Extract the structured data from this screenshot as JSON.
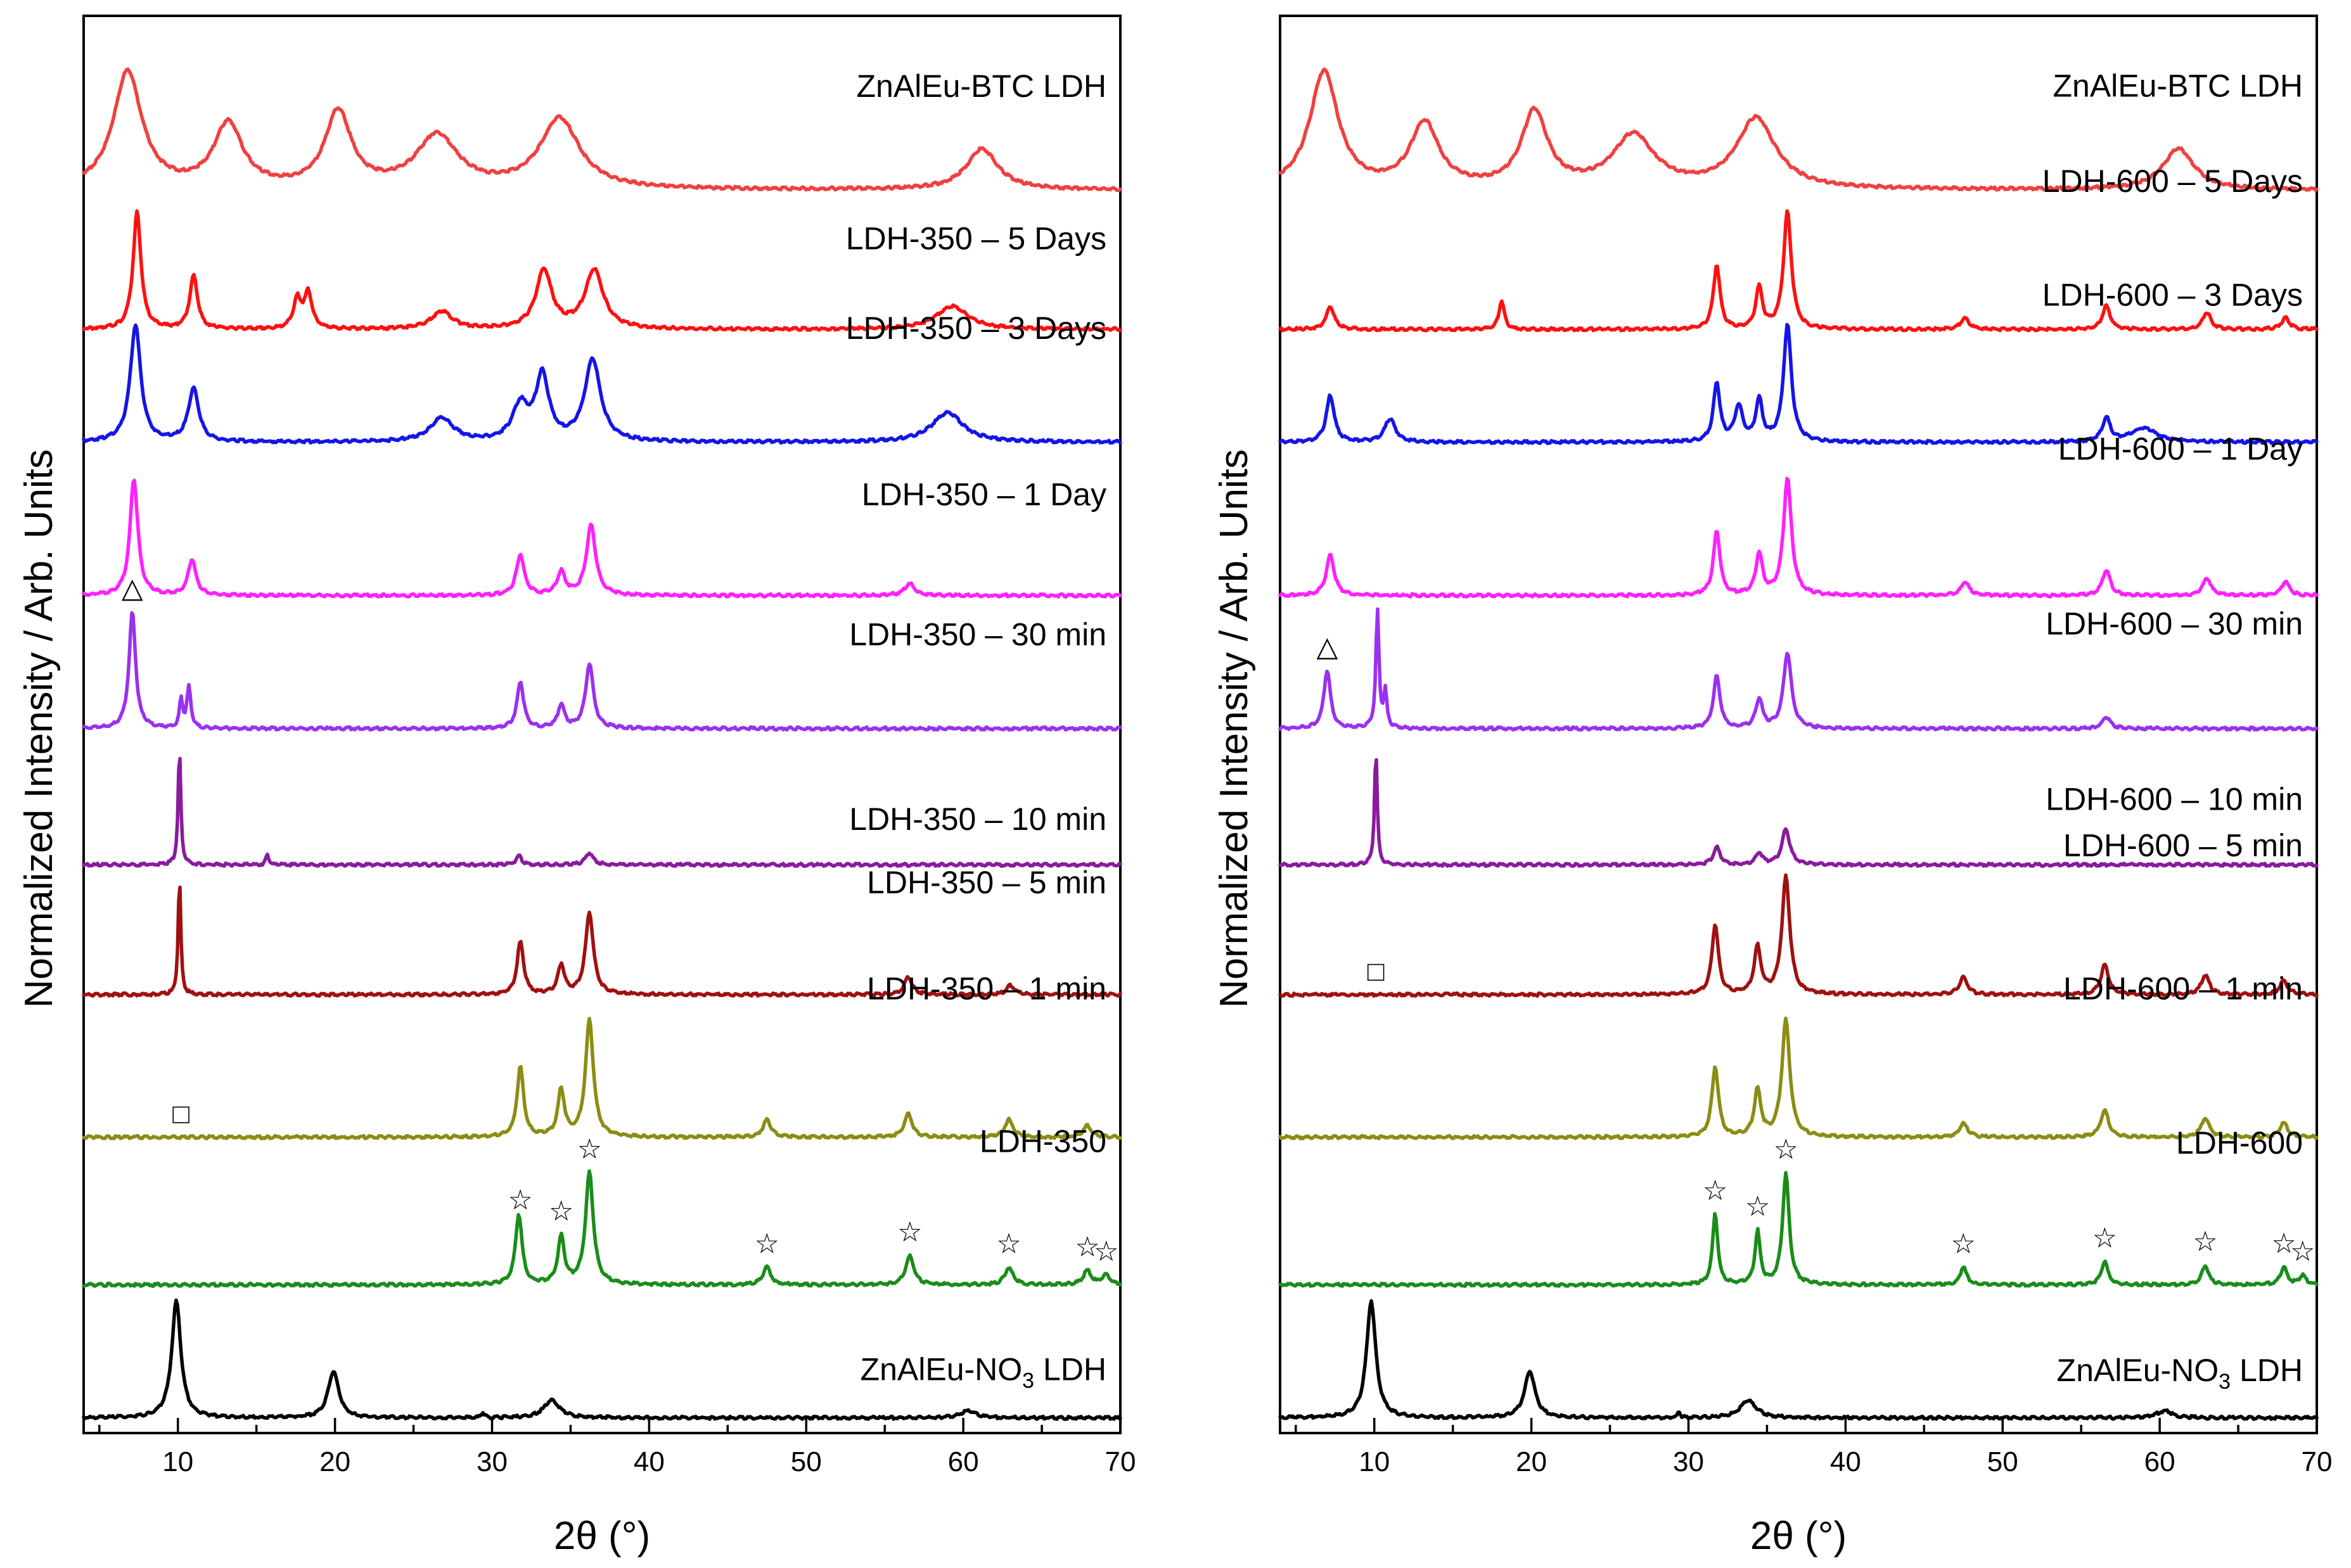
{
  "figure": {
    "y_axis_title": "Normalized Intensity / Arb. Units",
    "x_axis_title": "2θ (°)"
  },
  "chart_data": [
    {
      "type": "line",
      "panel": "left",
      "xlabel": "2θ (°)",
      "ylabel": "Normalized Intensity / Arb. Units",
      "xlim": [
        4,
        70
      ],
      "xticks": [
        10,
        20,
        30,
        40,
        50,
        60,
        70
      ],
      "series": [
        {
          "name": "ZnAlEu-BTC LDH",
          "label_main": "ZnAlEu-BTC LDH",
          "color": "#f04040",
          "peaks": [
            [
              6.8,
              1.0,
              1.1
            ],
            [
              13.2,
              0.55,
              1.1
            ],
            [
              20.2,
              0.65,
              1.0
            ],
            [
              26.5,
              0.45,
              1.6
            ],
            [
              34.3,
              0.6,
              1.5
            ],
            [
              61.2,
              0.35,
              1.2
            ]
          ]
        },
        {
          "name": "LDH-350 – 5 Days",
          "label_main": "LDH-350 – 5 Days",
          "color": "#ff1010",
          "peaks": [
            [
              7.4,
              1.0,
              0.3
            ],
            [
              11.0,
              0.45,
              0.3
            ],
            [
              17.6,
              0.25,
              0.3
            ],
            [
              18.3,
              0.3,
              0.3
            ],
            [
              26.8,
              0.15,
              0.8
            ],
            [
              33.3,
              0.5,
              0.6
            ],
            [
              36.5,
              0.5,
              0.7
            ],
            [
              59.3,
              0.2,
              1.2
            ]
          ]
        },
        {
          "name": "LDH-350 – 3 Days",
          "label_main": "LDH-350 – 3 Days",
          "color": "#1515e6",
          "peaks": [
            [
              7.3,
              1.0,
              0.4
            ],
            [
              11.0,
              0.45,
              0.4
            ],
            [
              26.8,
              0.2,
              0.9
            ],
            [
              31.8,
              0.3,
              0.6
            ],
            [
              33.2,
              0.55,
              0.5
            ],
            [
              36.4,
              0.7,
              0.6
            ],
            [
              59.0,
              0.25,
              1.2
            ]
          ]
        },
        {
          "name": "LDH-350 – 1 Day",
          "label_main": "LDH-350 – 1 Day",
          "color": "#ff20ff",
          "peaks": [
            [
              7.2,
              1.0,
              0.3
            ],
            [
              10.9,
              0.3,
              0.3
            ],
            [
              31.8,
              0.35,
              0.3
            ],
            [
              34.4,
              0.2,
              0.3
            ],
            [
              36.3,
              0.6,
              0.35
            ],
            [
              56.6,
              0.1,
              0.4
            ]
          ]
        },
        {
          "name": "LDH-350 – 30 min",
          "label_main": "LDH-350 – 30 min",
          "color": "#9a30f0",
          "peaks": [
            [
              7.1,
              1.0,
              0.25
            ],
            [
              10.2,
              0.25,
              0.12
            ],
            [
              10.7,
              0.35,
              0.15
            ],
            [
              31.8,
              0.4,
              0.25
            ],
            [
              34.4,
              0.2,
              0.25
            ],
            [
              36.2,
              0.55,
              0.3
            ]
          ]
        },
        {
          "name": "LDH-350 – 10 min",
          "label_main": "LDH-350 – 10 min",
          "color": "#8a1a9e",
          "peaks": [
            [
              10.1,
              1.0,
              0.1
            ],
            [
              15.7,
              0.1,
              0.1
            ],
            [
              31.7,
              0.08,
              0.2
            ],
            [
              36.2,
              0.1,
              0.3
            ]
          ]
        },
        {
          "name": "LDH-350 – 5 min",
          "label_main": "LDH-350 – 5 min",
          "color": "#a01010",
          "peaks": [
            [
              10.1,
              1.0,
              0.1
            ],
            [
              31.8,
              0.45,
              0.25
            ],
            [
              34.4,
              0.25,
              0.25
            ],
            [
              36.2,
              0.7,
              0.3
            ],
            [
              56.5,
              0.15,
              0.3
            ],
            [
              63.0,
              0.08,
              0.3
            ]
          ]
        },
        {
          "name": "LDH-350 – 1 min",
          "label_main": "LDH-350 – 1 min",
          "color": "#8c8c14",
          "peaks": [
            [
              31.8,
              0.6,
              0.25
            ],
            [
              34.4,
              0.4,
              0.25
            ],
            [
              36.2,
              1.0,
              0.3
            ],
            [
              47.5,
              0.15,
              0.3
            ],
            [
              56.5,
              0.2,
              0.3
            ],
            [
              62.9,
              0.15,
              0.3
            ],
            [
              67.9,
              0.1,
              0.3
            ]
          ]
        },
        {
          "name": "LDH-350",
          "label_main": "LDH-350",
          "color": "#1a8c1a",
          "peaks": [
            [
              31.7,
              0.6,
              0.25
            ],
            [
              34.4,
              0.4,
              0.25
            ],
            [
              36.2,
              0.95,
              0.3
            ],
            [
              47.5,
              0.15,
              0.3
            ],
            [
              56.6,
              0.25,
              0.3
            ],
            [
              62.9,
              0.15,
              0.3
            ],
            [
              67.9,
              0.12,
              0.3
            ],
            [
              69.1,
              0.08,
              0.3
            ]
          ]
        },
        {
          "name": "ZnAlEu-NO3 LDH",
          "label_main": "ZnAlEu-NO",
          "label_sub": "3",
          "label_tail": " LDH",
          "color": "#000000",
          "peaks": [
            [
              9.9,
              1.0,
              0.35
            ],
            [
              19.9,
              0.4,
              0.4
            ],
            [
              29.4,
              0.05,
              0.1
            ],
            [
              33.8,
              0.15,
              0.6
            ],
            [
              60.3,
              0.06,
              0.6
            ]
          ]
        }
      ],
      "markers": [
        {
          "symbol": "☆",
          "x": 31.8,
          "series": "LDH-350"
        },
        {
          "symbol": "☆",
          "x": 34.4,
          "series": "LDH-350"
        },
        {
          "symbol": "☆",
          "x": 36.2,
          "series": "LDH-350"
        },
        {
          "symbol": "☆",
          "x": 47.5,
          "series": "LDH-350"
        },
        {
          "symbol": "☆",
          "x": 56.6,
          "series": "LDH-350"
        },
        {
          "symbol": "☆",
          "x": 62.9,
          "series": "LDH-350"
        },
        {
          "symbol": "☆",
          "x": 67.9,
          "series": "LDH-350"
        },
        {
          "symbol": "☆",
          "x": 69.1,
          "series": "LDH-350"
        },
        {
          "symbol": "△",
          "x": 7.1,
          "series": "LDH-350 – 30 min"
        },
        {
          "symbol": "□",
          "x": 10.2,
          "series": "LDH-350 – 1 min"
        }
      ]
    },
    {
      "type": "line",
      "panel": "right",
      "xlabel": "2θ (°)",
      "ylabel": "Normalized Intensity / Arb. Units",
      "xlim": [
        4,
        70
      ],
      "xticks": [
        10,
        20,
        30,
        40,
        50,
        60,
        70
      ],
      "series": [
        {
          "name": "ZnAlEu-BTC LDH",
          "label_main": "ZnAlEu-BTC LDH",
          "color": "#f04040",
          "peaks": [
            [
              6.8,
              1.0,
              1.1
            ],
            [
              13.2,
              0.55,
              1.1
            ],
            [
              20.2,
              0.65,
              1.0
            ],
            [
              26.5,
              0.45,
              1.6
            ],
            [
              34.3,
              0.6,
              1.5
            ],
            [
              61.2,
              0.35,
              1.2
            ]
          ]
        },
        {
          "name": "LDH-600 – 5 Days",
          "label_main": "LDH-600 – 5 Days",
          "color": "#ff1010",
          "peaks": [
            [
              7.2,
              0.2,
              0.3
            ],
            [
              18.1,
              0.25,
              0.2
            ],
            [
              31.8,
              0.55,
              0.25
            ],
            [
              34.5,
              0.35,
              0.25
            ],
            [
              36.3,
              1.0,
              0.3
            ],
            [
              47.6,
              0.1,
              0.3
            ],
            [
              56.6,
              0.2,
              0.3
            ],
            [
              63.0,
              0.15,
              0.3
            ],
            [
              68.0,
              0.1,
              0.3
            ]
          ]
        },
        {
          "name": "LDH-600 – 3 Days",
          "label_main": "LDH-600 – 3 Days",
          "color": "#1515e6",
          "peaks": [
            [
              7.2,
              0.4,
              0.3
            ],
            [
              11.0,
              0.2,
              0.4
            ],
            [
              31.8,
              0.5,
              0.25
            ],
            [
              33.2,
              0.3,
              0.3
            ],
            [
              34.5,
              0.35,
              0.25
            ],
            [
              36.3,
              1.0,
              0.3
            ],
            [
              56.6,
              0.2,
              0.3
            ],
            [
              59.0,
              0.12,
              1.0
            ]
          ]
        },
        {
          "name": "LDH-600 – 1 Day",
          "label_main": "LDH-600 – 1 Day",
          "color": "#ff20ff",
          "peaks": [
            [
              7.2,
              0.35,
              0.3
            ],
            [
              31.8,
              0.55,
              0.25
            ],
            [
              34.5,
              0.35,
              0.25
            ],
            [
              36.3,
              1.0,
              0.3
            ],
            [
              47.6,
              0.12,
              0.3
            ],
            [
              56.6,
              0.22,
              0.3
            ],
            [
              63.0,
              0.15,
              0.3
            ],
            [
              68.0,
              0.12,
              0.3
            ]
          ]
        },
        {
          "name": "LDH-600 – 30 min",
          "label_main": "LDH-600 – 30 min",
          "color": "#9a30f0",
          "peaks": [
            [
              7.0,
              0.5,
              0.25
            ],
            [
              10.2,
              1.0,
              0.12
            ],
            [
              10.7,
              0.3,
              0.12
            ],
            [
              31.8,
              0.45,
              0.25
            ],
            [
              34.5,
              0.25,
              0.25
            ],
            [
              36.3,
              0.65,
              0.3
            ],
            [
              56.6,
              0.1,
              0.3
            ]
          ]
        },
        {
          "name": "LDH-600 – 10 min",
          "label_main": "LDH-600 – 10 min",
          "color": "#8a1a9e",
          "peaks": [
            [
              10.1,
              1.0,
              0.1
            ],
            [
              31.8,
              0.15,
              0.25
            ],
            [
              34.5,
              0.1,
              0.25
            ],
            [
              36.2,
              0.3,
              0.3
            ]
          ]
        },
        {
          "name": "LDH-600 – 5 min",
          "label_main": "LDH-600 – 5 min",
          "color": "#a01010",
          "peaks": [
            [
              31.7,
              0.6,
              0.25
            ],
            [
              34.4,
              0.4,
              0.25
            ],
            [
              36.2,
              1.0,
              0.3
            ],
            [
              47.5,
              0.15,
              0.3
            ],
            [
              56.5,
              0.25,
              0.3
            ],
            [
              62.9,
              0.17,
              0.3
            ],
            [
              67.9,
              0.12,
              0.3
            ]
          ]
        },
        {
          "name": "LDH-600 – 1 min",
          "label_main": "LDH-600 – 1 min",
          "color": "#8c8c14",
          "peaks": [
            [
              31.7,
              0.6,
              0.25
            ],
            [
              34.4,
              0.4,
              0.25
            ],
            [
              36.2,
              1.0,
              0.3
            ],
            [
              47.5,
              0.12,
              0.3
            ],
            [
              56.5,
              0.23,
              0.3
            ],
            [
              62.9,
              0.17,
              0.3
            ],
            [
              67.9,
              0.12,
              0.3
            ]
          ]
        },
        {
          "name": "LDH-600",
          "label_main": "LDH-600",
          "color": "#1a8c1a",
          "peaks": [
            [
              31.7,
              0.6,
              0.2
            ],
            [
              34.4,
              0.45,
              0.2
            ],
            [
              36.2,
              0.95,
              0.25
            ],
            [
              47.5,
              0.15,
              0.25
            ],
            [
              56.5,
              0.2,
              0.25
            ],
            [
              62.9,
              0.17,
              0.25
            ],
            [
              67.9,
              0.15,
              0.25
            ],
            [
              69.1,
              0.08,
              0.25
            ]
          ]
        },
        {
          "name": "ZnAlEu-NO3 LDH",
          "label_main": "ZnAlEu-NO",
          "label_sub": "3",
          "label_tail": " LDH",
          "color": "#000000",
          "peaks": [
            [
              9.8,
              1.0,
              0.35
            ],
            [
              19.9,
              0.4,
              0.4
            ],
            [
              29.4,
              0.05,
              0.1
            ],
            [
              33.8,
              0.15,
              0.6
            ],
            [
              60.3,
              0.06,
              0.6
            ]
          ]
        }
      ],
      "markers": [
        {
          "symbol": "☆",
          "x": 31.7,
          "series": "LDH-600"
        },
        {
          "symbol": "☆",
          "x": 34.4,
          "series": "LDH-600"
        },
        {
          "symbol": "☆",
          "x": 36.2,
          "series": "LDH-600"
        },
        {
          "symbol": "☆",
          "x": 47.5,
          "series": "LDH-600"
        },
        {
          "symbol": "☆",
          "x": 56.5,
          "series": "LDH-600"
        },
        {
          "symbol": "☆",
          "x": 62.9,
          "series": "LDH-600"
        },
        {
          "symbol": "☆",
          "x": 67.9,
          "series": "LDH-600"
        },
        {
          "symbol": "☆",
          "x": 69.1,
          "series": "LDH-600"
        },
        {
          "symbol": "△",
          "x": 7.0,
          "series": "LDH-600 – 30 min"
        },
        {
          "symbol": "□",
          "x": 10.1,
          "series": "LDH-600 – 5 min"
        }
      ]
    }
  ]
}
